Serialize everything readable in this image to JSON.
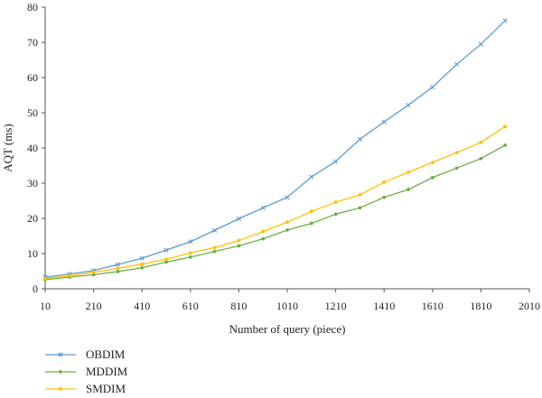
{
  "chart_data": {
    "type": "line",
    "title": "",
    "xlabel": "Number of query (piece)",
    "ylabel": "AQT (ms)",
    "xlim": [
      10,
      2010
    ],
    "ylim": [
      0,
      80
    ],
    "xticks": [
      10,
      210,
      410,
      610,
      810,
      1010,
      1210,
      1410,
      1610,
      1810,
      2010
    ],
    "yticks": [
      0,
      10,
      20,
      30,
      40,
      50,
      60,
      70,
      80
    ],
    "grid": false,
    "legend_position": "bottom-left",
    "x": [
      10,
      110,
      210,
      310,
      410,
      510,
      610,
      710,
      810,
      910,
      1010,
      1110,
      1210,
      1310,
      1410,
      1510,
      1610,
      1710,
      1810,
      1910
    ],
    "series": [
      {
        "name": "OBDIM",
        "color": "#5b9bd5",
        "marker": "x",
        "values": [
          3.3,
          4.2,
          5.2,
          6.9,
          8.7,
          11.0,
          13.4,
          16.6,
          19.9,
          23.0,
          26.0,
          31.8,
          36.2,
          42.5,
          47.4,
          52.2,
          57.3,
          63.8,
          69.5,
          76.2
        ]
      },
      {
        "name": "MDDIM",
        "color": "#70ad47",
        "marker": "dot",
        "values": [
          2.6,
          3.3,
          4.0,
          4.9,
          6.0,
          7.6,
          9.0,
          10.6,
          12.2,
          14.2,
          16.7,
          18.6,
          21.2,
          23.0,
          26.0,
          28.2,
          31.6,
          34.3,
          37.0,
          40.8
        ]
      },
      {
        "name": "SMDIM",
        "color": "#ffc000",
        "marker": "dot",
        "values": [
          2.9,
          3.7,
          4.7,
          5.8,
          7.0,
          8.4,
          10.2,
          11.7,
          13.7,
          16.3,
          18.9,
          22.0,
          24.6,
          26.7,
          30.3,
          33.1,
          35.9,
          38.7,
          41.6,
          46.1
        ]
      }
    ]
  }
}
